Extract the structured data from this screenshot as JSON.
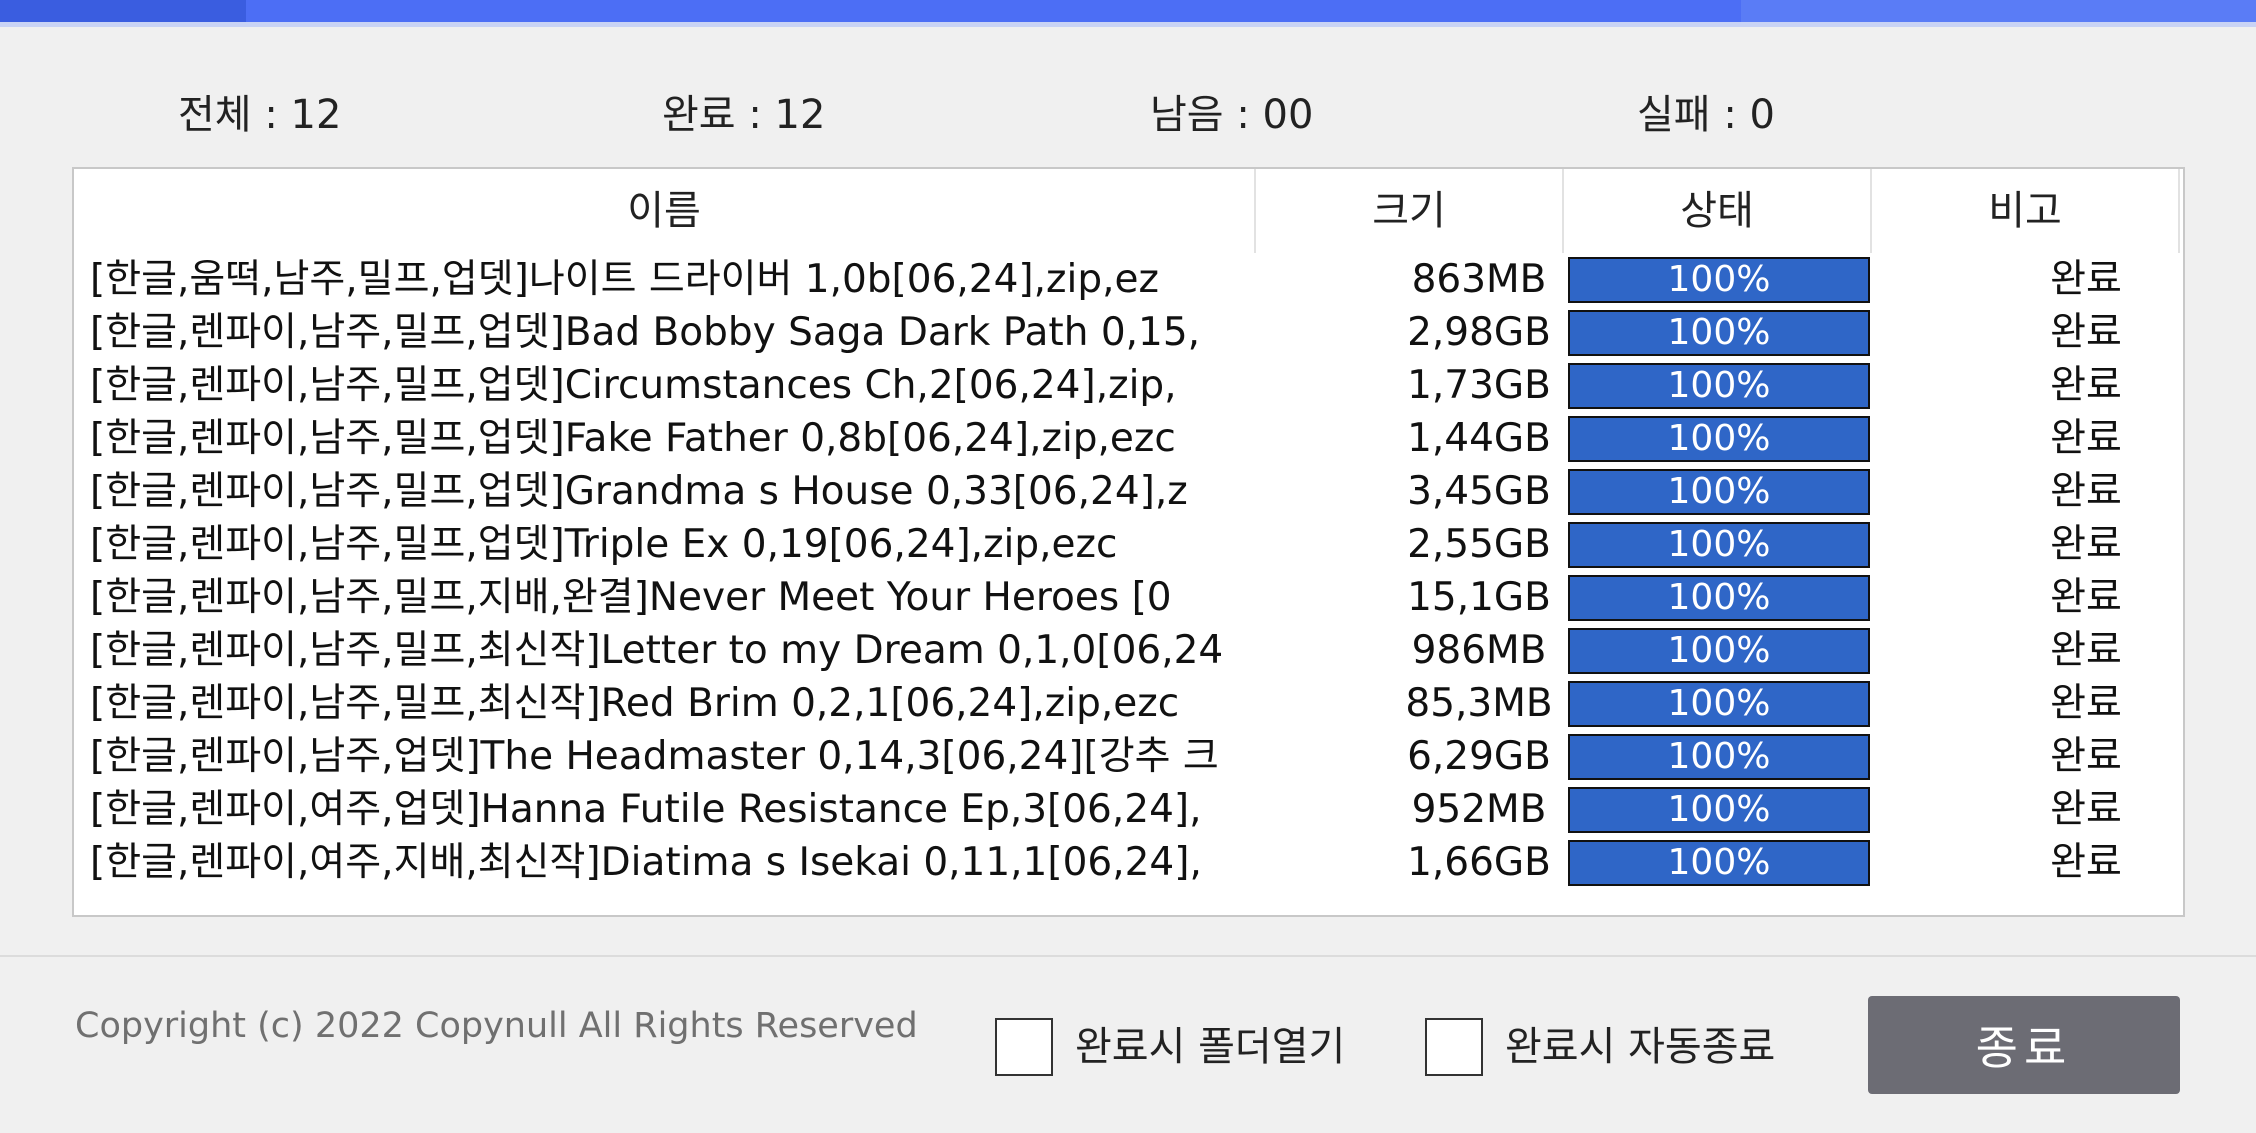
{
  "colors": {
    "accent": "#4c6ef5",
    "progress": "#2f66c7",
    "button": "#6c6c74"
  },
  "stats": {
    "total": "전체 : 12",
    "done": "완료 : 12",
    "remaining": "남음 : 00",
    "failed": "실패 : 0"
  },
  "columns": {
    "name": "이름",
    "size": "크기",
    "status": "상태",
    "note": "비고"
  },
  "rows": [
    {
      "name": "[한글,움떡,남주,밀프,업뎃]나이트 드라이버 1,0b[06,24],zip,ez",
      "size": "863MB",
      "progress": 100,
      "progress_label": "100%",
      "note": "완료"
    },
    {
      "name": "[한글,렌파이,남주,밀프,업뎃]Bad Bobby Saga Dark Path 0,15,",
      "size": "2,98GB",
      "progress": 100,
      "progress_label": "100%",
      "note": "완료"
    },
    {
      "name": "[한글,렌파이,남주,밀프,업뎃]Circumstances Ch,2[06,24],zip,",
      "size": "1,73GB",
      "progress": 100,
      "progress_label": "100%",
      "note": "완료"
    },
    {
      "name": "[한글,렌파이,남주,밀프,업뎃]Fake Father 0,8b[06,24],zip,ezc",
      "size": "1,44GB",
      "progress": 100,
      "progress_label": "100%",
      "note": "완료"
    },
    {
      "name": "[한글,렌파이,남주,밀프,업뎃]Grandma s House 0,33[06,24],z",
      "size": "3,45GB",
      "progress": 100,
      "progress_label": "100%",
      "note": "완료"
    },
    {
      "name": "[한글,렌파이,남주,밀프,업뎃]Triple Ex 0,19[06,24],zip,ezc",
      "size": "2,55GB",
      "progress": 100,
      "progress_label": "100%",
      "note": "완료"
    },
    {
      "name": "[한글,렌파이,남주,밀프,지배,완결]Never Meet Your Heroes [0",
      "size": "15,1GB",
      "progress": 100,
      "progress_label": "100%",
      "note": "완료"
    },
    {
      "name": "[한글,렌파이,남주,밀프,최신작]Letter to my Dream 0,1,0[06,24",
      "size": "986MB",
      "progress": 100,
      "progress_label": "100%",
      "note": "완료"
    },
    {
      "name": "[한글,렌파이,남주,밀프,최신작]Red Brim 0,2,1[06,24],zip,ezc",
      "size": "85,3MB",
      "progress": 100,
      "progress_label": "100%",
      "note": "완료"
    },
    {
      "name": "[한글,렌파이,남주,업뎃]The Headmaster 0,14,3[06,24][강추 크",
      "size": "6,29GB",
      "progress": 100,
      "progress_label": "100%",
      "note": "완료"
    },
    {
      "name": "[한글,렌파이,여주,업뎃]Hanna Futile Resistance Ep,3[06,24],",
      "size": "952MB",
      "progress": 100,
      "progress_label": "100%",
      "note": "완료"
    },
    {
      "name": "[한글,렌파이,여주,지배,최신작]Diatima s Isekai 0,11,1[06,24],",
      "size": "1,66GB",
      "progress": 100,
      "progress_label": "100%",
      "note": "완료"
    }
  ],
  "footer": {
    "copyright": "Copyright (c) 2022 Copynull All Rights Reserved",
    "open_folder_label": "완료시 폴더열기",
    "auto_exit_label": "완료시 자동종료",
    "close_label": "종료"
  }
}
